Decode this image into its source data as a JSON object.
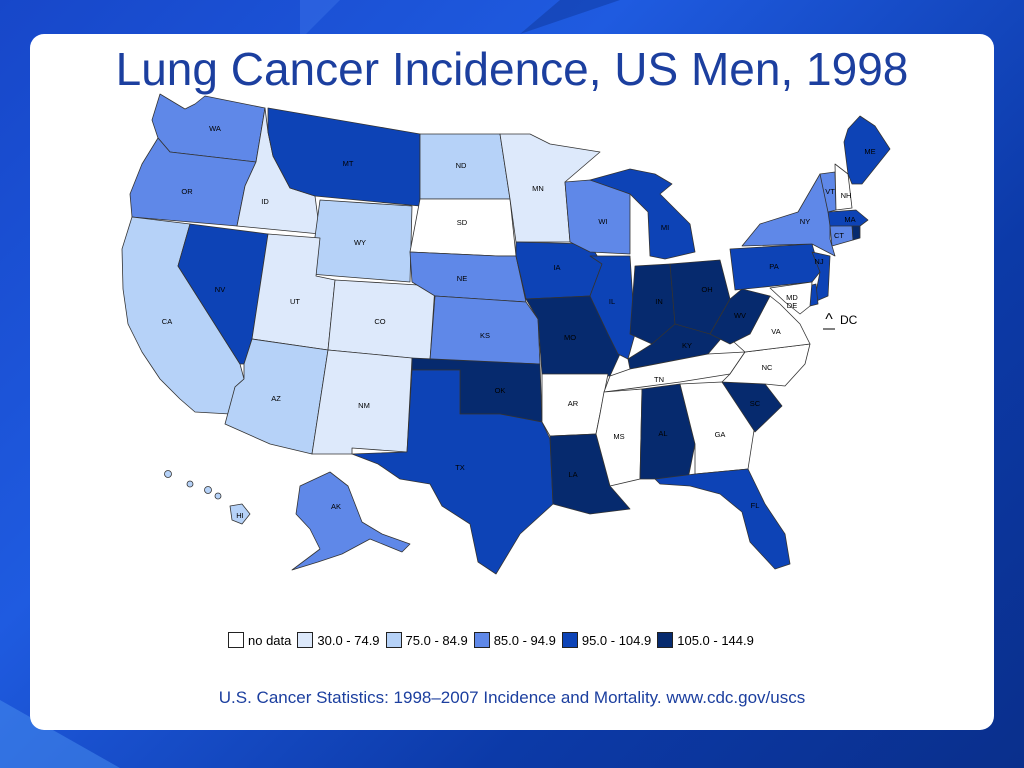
{
  "title": "Lung Cancer Incidence, US Men, 1998",
  "source": "U.S. Cancer Statistics: 1998–2007 Incidence and Mortality. www.cdc.gov/uscs",
  "colors": {
    "no_data": "#ffffff",
    "c1": "#dde9fb",
    "c2": "#b6d2f8",
    "c3": "#5f88e8",
    "c4": "#0d43b6",
    "c5": "#062a6e",
    "border": "#333333"
  },
  "legend": [
    {
      "label": "no data",
      "cls": "no_data"
    },
    {
      "label": "30.0 - 74.9",
      "cls": "c1"
    },
    {
      "label": "75.0 - 84.9",
      "cls": "c2"
    },
    {
      "label": "85.0 - 94.9",
      "cls": "c3"
    },
    {
      "label": "95.0 - 104.9",
      "cls": "c4"
    },
    {
      "label": "105.0 - 144.9",
      "cls": "c5"
    }
  ],
  "states": {
    "WA": {
      "label": "WA",
      "cls": "c3"
    },
    "OR": {
      "label": "OR",
      "cls": "c3"
    },
    "CA": {
      "label": "CA",
      "cls": "c2"
    },
    "ID": {
      "label": "ID",
      "cls": "c1"
    },
    "NV": {
      "label": "NV",
      "cls": "c4"
    },
    "MT": {
      "label": "MT",
      "cls": "c4"
    },
    "WY": {
      "label": "WY",
      "cls": "c2"
    },
    "UT": {
      "label": "UT",
      "cls": "c1"
    },
    "AZ": {
      "label": "AZ",
      "cls": "c2"
    },
    "CO": {
      "label": "CO",
      "cls": "c1"
    },
    "NM": {
      "label": "NM",
      "cls": "c1"
    },
    "ND": {
      "label": "ND",
      "cls": "c2"
    },
    "SD": {
      "label": "SD",
      "cls": "no_data"
    },
    "NE": {
      "label": "NE",
      "cls": "c3"
    },
    "KS": {
      "label": "KS",
      "cls": "c3"
    },
    "OK": {
      "label": "OK",
      "cls": "c5"
    },
    "TX": {
      "label": "TX",
      "cls": "c4"
    },
    "MN": {
      "label": "MN",
      "cls": "c1"
    },
    "IA": {
      "label": "IA",
      "cls": "c4"
    },
    "MO": {
      "label": "MO",
      "cls": "c5"
    },
    "AR": {
      "label": "AR",
      "cls": "no_data"
    },
    "LA": {
      "label": "LA",
      "cls": "c5"
    },
    "WI": {
      "label": "WI",
      "cls": "c3"
    },
    "IL": {
      "label": "IL",
      "cls": "c4"
    },
    "MI": {
      "label": "MI",
      "cls": "c4"
    },
    "IN": {
      "label": "IN",
      "cls": "c5"
    },
    "OH": {
      "label": "OH",
      "cls": "c5"
    },
    "KY": {
      "label": "KY",
      "cls": "c5"
    },
    "TN": {
      "label": "TN",
      "cls": "no_data"
    },
    "MS": {
      "label": "MS",
      "cls": "no_data"
    },
    "AL": {
      "label": "AL",
      "cls": "c5"
    },
    "GA": {
      "label": "GA",
      "cls": "no_data"
    },
    "FL": {
      "label": "FL",
      "cls": "c4"
    },
    "SC": {
      "label": "SC",
      "cls": "c5"
    },
    "NC": {
      "label": "NC",
      "cls": "no_data"
    },
    "VA": {
      "label": "VA",
      "cls": "no_data"
    },
    "WV": {
      "label": "WV",
      "cls": "c5"
    },
    "PA": {
      "label": "PA",
      "cls": "c4"
    },
    "NY": {
      "label": "NY",
      "cls": "c3"
    },
    "VT": {
      "label": "VT",
      "cls": "c3"
    },
    "NH": {
      "label": "NH",
      "cls": "no_data"
    },
    "ME": {
      "label": "ME",
      "cls": "c4"
    },
    "MA": {
      "label": "MA",
      "cls": "c4"
    },
    "CT": {
      "label": "CT",
      "cls": "c3"
    },
    "RI": {
      "label": "",
      "cls": "c5"
    },
    "NJ": {
      "label": "NJ",
      "cls": "c4"
    },
    "DE": {
      "label": "DE",
      "cls": "c4"
    },
    "MD": {
      "label": "MD",
      "cls": "no_data"
    },
    "AK": {
      "label": "AK",
      "cls": "c3"
    },
    "HI": {
      "label": "HI",
      "cls": "c2"
    }
  },
  "dc": {
    "label": "DC",
    "marker": "^",
    "cls": "no_data"
  }
}
